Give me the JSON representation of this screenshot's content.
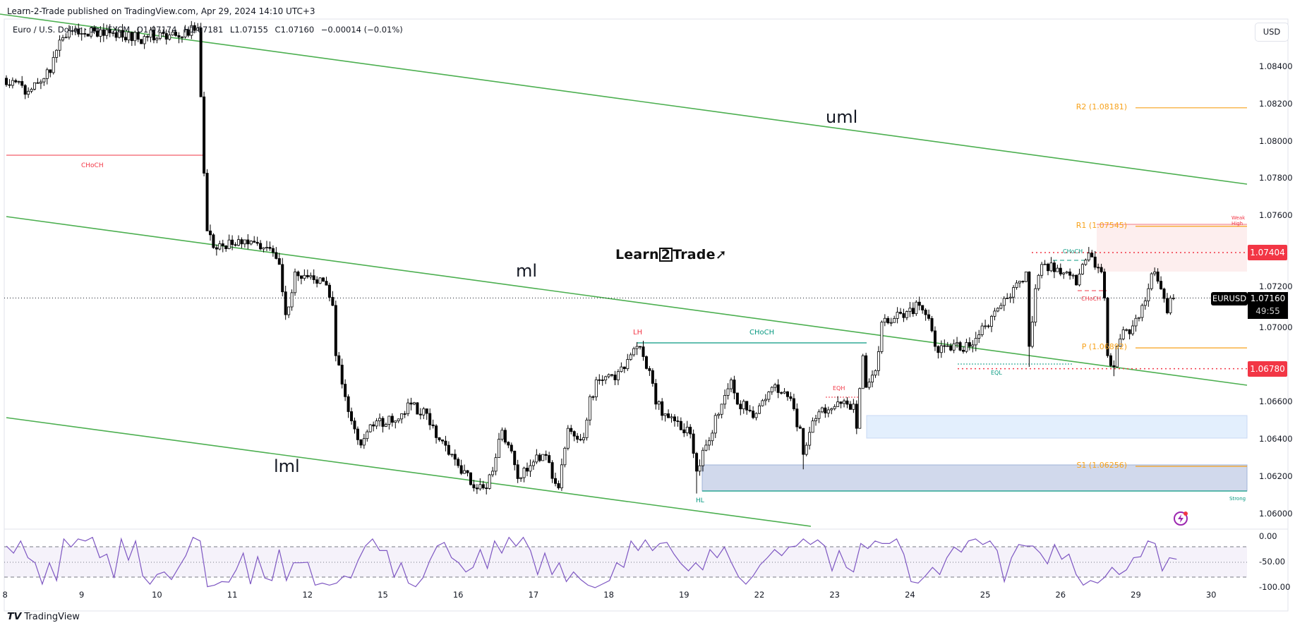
{
  "header": {
    "published": "Learn-2-Trade published on TradingView.com, Apr 29, 2024 14:10 UTC+3",
    "symbol_desc": "Euro / U.S. Dollar · 1h · FXCM",
    "open": "O1.07174",
    "high": "H1.07181",
    "low": "L1.07155",
    "close": "C1.07160",
    "change": "−0.00014 (−0.01%)"
  },
  "currency_button": "USD",
  "watermark": {
    "left": "Learn",
    "num": "2",
    "right": "Trade"
  },
  "footer_logo": "TradingView",
  "colors": {
    "up_body": "#ffffff",
    "down_body": "#000000",
    "channel": "#4caf50",
    "pivot": "#f7a21b",
    "bearish": "#f23645",
    "bullish": "#089981",
    "oscillator": "#7e57c2",
    "demand_zone": "#e3effd",
    "strong_zone": "#d1d9ec",
    "supply_zone": "#fdeeee"
  },
  "chart_data": {
    "type": "candlestick",
    "symbol": "EURUSD",
    "timeframe": "1h",
    "last_price": "1.07160",
    "countdown": "49:55",
    "price_axis": {
      "range": [
        1.0596,
        1.0866
      ],
      "ticks": [
        "1.08400",
        "1.08200",
        "1.08000",
        "1.07800",
        "1.07600",
        "1.07200",
        "1.07000",
        "1.06600",
        "1.06400",
        "1.06200",
        "1.06000"
      ]
    },
    "time_axis": {
      "ticks": [
        {
          "day": 8,
          "label": "8"
        },
        {
          "day": 9,
          "label": "9"
        },
        {
          "day": 10,
          "label": "10"
        },
        {
          "day": 11,
          "label": "11"
        },
        {
          "day": 12,
          "label": "12"
        },
        {
          "day": 15,
          "label": "15"
        },
        {
          "day": 16,
          "label": "16"
        },
        {
          "day": 17,
          "label": "17"
        },
        {
          "day": 18,
          "label": "18"
        },
        {
          "day": 19,
          "label": "19"
        },
        {
          "day": 22,
          "label": "22"
        },
        {
          "day": 23,
          "label": "23"
        },
        {
          "day": 24,
          "label": "24"
        },
        {
          "day": 25,
          "label": "25"
        },
        {
          "day": 26,
          "label": "26"
        },
        {
          "day": 29,
          "label": "29"
        },
        {
          "day": 30,
          "label": "30"
        }
      ]
    },
    "closes": [
      [
        "Apr 8 00:00",
        1.0834
      ],
      [
        "Apr 8 03:00",
        1.0832
      ],
      [
        "Apr 8 07:00",
        1.0827
      ],
      [
        "Apr 8 11:00",
        1.0832
      ],
      [
        "Apr 8 14:00",
        1.0837
      ],
      [
        "Apr 8 16:00",
        1.0849
      ],
      [
        "Apr 8 19:00",
        1.0856
      ],
      [
        "Apr 9 00:00",
        1.0858
      ],
      [
        "Apr 9 08:00",
        1.086
      ],
      [
        "Apr 9 13:00",
        1.0856
      ],
      [
        "Apr 9 21:00",
        1.0856
      ],
      [
        "Apr 10 02:00",
        1.0858
      ],
      [
        "Apr 10 07:00",
        1.0856
      ],
      [
        "Apr 10 13:00",
        1.0861
      ],
      [
        "Apr 10 15:00",
        1.0783
      ],
      [
        "Apr 10 16:00",
        1.0752
      ],
      [
        "Apr 10 18:00",
        1.0743
      ],
      [
        "Apr 11 05:00",
        1.0745
      ],
      [
        "Apr 11 10:00",
        1.0743
      ],
      [
        "Apr 11 15:00",
        1.0734
      ],
      [
        "Apr 11 17:00",
        1.0707
      ],
      [
        "Apr 11 20:00",
        1.073
      ],
      [
        "Apr 12 01:00",
        1.0728
      ],
      [
        "Apr 12 05:00",
        1.0725
      ],
      [
        "Apr 12 08:00",
        1.0712
      ],
      [
        "Apr 12 09:00",
        1.0685
      ],
      [
        "Apr 12 12:00",
        1.0663
      ],
      [
        "Apr 12 14:00",
        1.065
      ],
      [
        "Apr 12 17:00",
        1.0637
      ],
      [
        "Apr 12 22:00",
        1.065
      ],
      [
        "Apr 15 04:00",
        1.065
      ],
      [
        "Apr 15 09:00",
        1.0659
      ],
      [
        "Apr 15 14:00",
        1.0654
      ],
      [
        "Apr 15 17:00",
        1.0641
      ],
      [
        "Apr 15 21:00",
        1.0632
      ],
      [
        "Apr 16 00:00",
        1.0626
      ],
      [
        "Apr 16 05:00",
        1.0614
      ],
      [
        "Apr 16 08:00",
        1.0614
      ],
      [
        "Apr 16 11:00",
        1.0623
      ],
      [
        "Apr 16 14:00",
        1.0645
      ],
      [
        "Apr 16 16:00",
        1.0637
      ],
      [
        "Apr 16 19:00",
        1.0619
      ],
      [
        "Apr 16 22:00",
        1.0623
      ],
      [
        "Apr 17 03:00",
        1.0632
      ],
      [
        "Apr 17 08:00",
        1.0614
      ],
      [
        "Apr 17 11:00",
        1.0646
      ],
      [
        "Apr 17 16:00",
        1.0641
      ],
      [
        "Apr 17 18:00",
        1.0663
      ],
      [
        "Apr 17 21:00",
        1.0672
      ],
      [
        "Apr 18 02:00",
        1.0672
      ],
      [
        "Apr 18 09:00",
        1.069
      ],
      [
        "Apr 18 13:00",
        1.0677
      ],
      [
        "Apr 18 15:00",
        1.0659
      ],
      [
        "Apr 18 21:00",
        1.065
      ],
      [
        "Apr 19 02:00",
        1.0643
      ],
      [
        "Apr 19 04:00",
        1.0623,
        1.0611
      ],
      [
        "Apr 19 07:00",
        1.0637
      ],
      [
        "Apr 19 12:00",
        1.0659
      ],
      [
        "Apr 19 15:00",
        1.0672
      ],
      [
        "Apr 19 17:00",
        1.0659
      ],
      [
        "Apr 19 23:00",
        1.0654
      ],
      [
        "Apr 22 04:00",
        1.0668
      ],
      [
        "Apr 22 09:00",
        1.0663
      ],
      [
        "Apr 22 13:00",
        1.0646
      ],
      [
        "Apr 22 14:00",
        1.0632,
        1.0624
      ],
      [
        "Apr 22 17:00",
        1.065
      ],
      [
        "Apr 22 20:00",
        1.0657
      ],
      [
        "Apr 23 06:00",
        1.0659
      ],
      [
        "Apr 23 07:00",
        1.0646
      ],
      [
        "Apr 23 09:00",
        1.0685
      ],
      [
        "Apr 23 10:00",
        1.0668
      ],
      [
        "Apr 23 13:00",
        1.0677
      ],
      [
        "Apr 23 15:00",
        1.0703
      ],
      [
        "Apr 23 19:00",
        1.0705
      ],
      [
        "Apr 24 03:00",
        1.0712
      ],
      [
        "Apr 24 06:00",
        1.0705
      ],
      [
        "Apr 24 08:00",
        1.069
      ],
      [
        "Apr 24 13:00",
        1.0688
      ],
      [
        "Apr 24 19:00",
        1.069
      ],
      [
        "Apr 25 00:00",
        1.0701
      ],
      [
        "Apr 25 05:00",
        1.0712
      ],
      [
        "Apr 25 11:00",
        1.0725
      ],
      [
        "Apr 25 13:00",
        1.073
      ],
      [
        "Apr 25 14:00",
        1.069,
        1.0679
      ],
      [
        "Apr 25 16:00",
        1.0721
      ],
      [
        "Apr 25 18:00",
        1.0734
      ],
      [
        "Apr 25 23:00",
        1.0732
      ],
      [
        "Apr 26 02:00",
        1.073
      ],
      [
        "Apr 26 05:00",
        1.0723
      ],
      [
        "Apr 26 07:00",
        1.0734
      ],
      [
        "Apr 26 10:00",
        1.0738
      ],
      [
        "Apr 26 13:00",
        1.073
      ],
      [
        "Apr 26 14:00",
        1.0716
      ],
      [
        "Apr 26 15:00",
        1.0685
      ],
      [
        "Apr 26 17:00",
        1.0679,
        1.0674
      ],
      [
        "Apr 26 18:00",
        1.069
      ],
      [
        "Apr 26 21:00",
        1.0699
      ],
      [
        "Apr 26 23:00",
        1.0701
      ],
      [
        "Apr 29 02:00",
        1.0712
      ],
      [
        "Apr 29 04:00",
        1.0721
      ],
      [
        "Apr 29 06:00",
        1.073
      ],
      [
        "Apr 29 07:00",
        1.0725
      ],
      [
        "Apr 29 10:00",
        1.0708
      ],
      [
        "Apr 29 11:00",
        1.0716
      ],
      [
        "Apr 29 12:00",
        1.0716
      ]
    ],
    "pivots": [
      {
        "label": "R2 (1.08181)",
        "value": 1.08181
      },
      {
        "label": "R1 (1.07545)",
        "value": 1.07545
      },
      {
        "label": "P (1.06892)",
        "value": 1.06892
      },
      {
        "label": "S1 (1.06256)",
        "value": 1.06256
      }
    ],
    "levels": [
      {
        "label": "1.07404",
        "value": 1.07404
      },
      {
        "label": "1.06780",
        "value": 1.0678
      }
    ],
    "channel_labels": {
      "upper": "uml",
      "median": "ml",
      "lower": "lml"
    },
    "annotations": {
      "choch_left": "CHoCH",
      "lh": "LH",
      "choch_mid": "CHoCH",
      "eqh": "EQH",
      "hl": "HL",
      "eql": "EQL",
      "choch_top": "CHoCH",
      "choch_red": "CHoCH",
      "weak_high": "Weak High",
      "strong_low": "Strong"
    },
    "oscillator": {
      "ticks": [
        "0.00",
        "-50.00",
        "-100.00"
      ],
      "upper_band": -20,
      "lower_band": -80,
      "values": [
        -18,
        -32,
        -8,
        -41,
        -51,
        -93,
        -51,
        -86,
        -4,
        -20,
        -4,
        -8,
        -1,
        -41,
        -34,
        -81,
        -4,
        -46,
        -8,
        -77,
        -93,
        -74,
        -69,
        -84,
        -60,
        -37,
        -1,
        -8,
        -98,
        -95,
        -88,
        -89,
        -65,
        -32,
        -93,
        -39,
        -81,
        -86,
        -25,
        -86,
        -51,
        -51,
        -50,
        -95,
        -91,
        -95,
        -91,
        -77,
        -81,
        -46,
        -18,
        -4,
        -27,
        -27,
        -79,
        -51,
        -91,
        -98,
        -81,
        -46,
        -18,
        -11,
        -41,
        -51,
        -69,
        -60,
        -25,
        -62,
        -8,
        -32,
        -1,
        -18,
        -1,
        -27,
        -74,
        -32,
        -74,
        -51,
        -88,
        -69,
        -84,
        -95,
        -100,
        -93,
        -86,
        -51,
        -60,
        -8,
        -27,
        -6,
        -27,
        -13,
        -11,
        -34,
        -53,
        -67,
        -51,
        -65,
        -25,
        -41,
        -20,
        -51,
        -79,
        -93,
        -77,
        -55,
        -41,
        -25,
        -37,
        -20,
        -18,
        -4,
        -15,
        -6,
        -18,
        -67,
        -27,
        -60,
        -69,
        -13,
        -23,
        -8,
        -13,
        -13,
        -4,
        -34,
        -88,
        -91,
        -77,
        -60,
        -74,
        -41,
        -20,
        -30,
        -8,
        -4,
        -15,
        -8,
        -27,
        -88,
        -41,
        -15,
        -18,
        -18,
        -32,
        -53,
        -15,
        -44,
        -34,
        -74,
        -95,
        -86,
        -91,
        -79,
        -60,
        -74,
        -65,
        -41,
        -39,
        -8,
        -13,
        -67,
        -41,
        -44
      ]
    }
  }
}
